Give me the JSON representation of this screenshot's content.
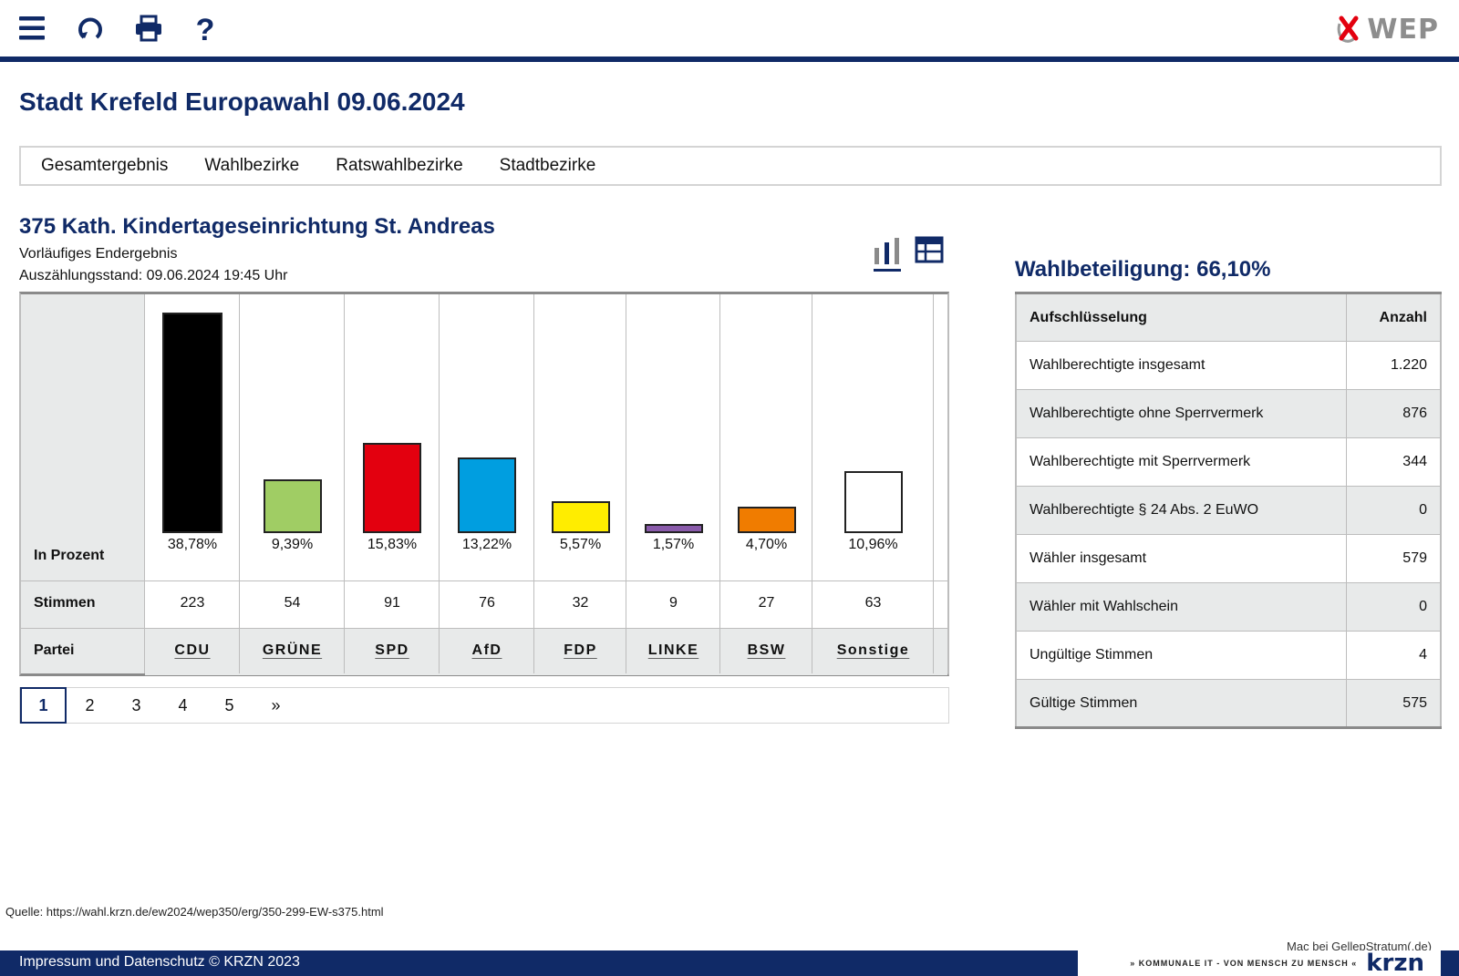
{
  "toolbar": {
    "menu_icon": "hamburger-menu-icon",
    "reload_icon": "refresh-icon",
    "print_icon": "printer-icon",
    "help_icon": "help-icon",
    "logo_text": "WEP"
  },
  "page_title": "Stadt Krefeld Europawahl 09.06.2024",
  "tabs": [
    {
      "label": "Gesamtergebnis"
    },
    {
      "label": "Wahlbezirke"
    },
    {
      "label": "Ratswahlbezirke"
    },
    {
      "label": "Stadtbezirke"
    }
  ],
  "district": {
    "title": "375 Kath. Kindertageseinrichtung St. Andreas",
    "status": "Vorläufiges Endergebnis",
    "count_status": "Auszählungsstand: 09.06.2024 19:45 Uhr"
  },
  "results_table": {
    "row_labels": {
      "percent": "In Prozent",
      "votes": "Stimmen",
      "party": "Partei"
    }
  },
  "chart_data": {
    "type": "bar",
    "categories": [
      "CDU",
      "GRÜNE",
      "SPD",
      "AfD",
      "FDP",
      "LINKE",
      "BSW",
      "Sonstige"
    ],
    "values": [
      38.78,
      9.39,
      15.83,
      13.22,
      5.57,
      1.57,
      4.7,
      10.96
    ],
    "value_labels": [
      "38,78%",
      "9,39%",
      "15,83%",
      "13,22%",
      "5,57%",
      "1,57%",
      "4,70%",
      "10,96%"
    ],
    "votes": [
      "223",
      "54",
      "91",
      "76",
      "32",
      "9",
      "27",
      "63"
    ],
    "colors": [
      "#000000",
      "#a0cd64",
      "#e3000f",
      "#009ee0",
      "#ffed00",
      "#8a5bab",
      "#f07c00",
      "#ffffff"
    ],
    "ylim": [
      0,
      40
    ]
  },
  "pagination": {
    "pages": [
      "1",
      "2",
      "3",
      "4",
      "5",
      "»"
    ],
    "active": "1"
  },
  "turnout": {
    "title": "Wahlbeteiligung: 66,10%",
    "headers": [
      "Aufschlüsselung",
      "Anzahl"
    ],
    "rows": [
      {
        "label": "Wahlberechtigte insgesamt",
        "value": "1.220"
      },
      {
        "label": "Wahlberechtigte ohne Sperrvermerk",
        "value": "876"
      },
      {
        "label": "Wahlberechtigte mit Sperrvermerk",
        "value": "344"
      },
      {
        "label": "Wahlberechtigte § 24 Abs. 2 EuWO",
        "value": "0"
      },
      {
        "label": "Wähler insgesamt",
        "value": "579"
      },
      {
        "label": "Wähler mit Wahlschein",
        "value": "0"
      },
      {
        "label": "Ungültige Stimmen",
        "value": "4"
      },
      {
        "label": "Gültige Stimmen",
        "value": "575"
      }
    ]
  },
  "footer": {
    "source": "Quelle: https://wahl.krzn.de/ew2024/wep350/erg/350-299-EW-s375.html",
    "credit": "Mac bei GellepStratum(.de)",
    "imprint": "Impressum und Datenschutz  © KRZN 2023",
    "slogan": "» KOMMUNALE IT - VON MENSCH ZU MENSCH «",
    "brand": "krzn"
  }
}
